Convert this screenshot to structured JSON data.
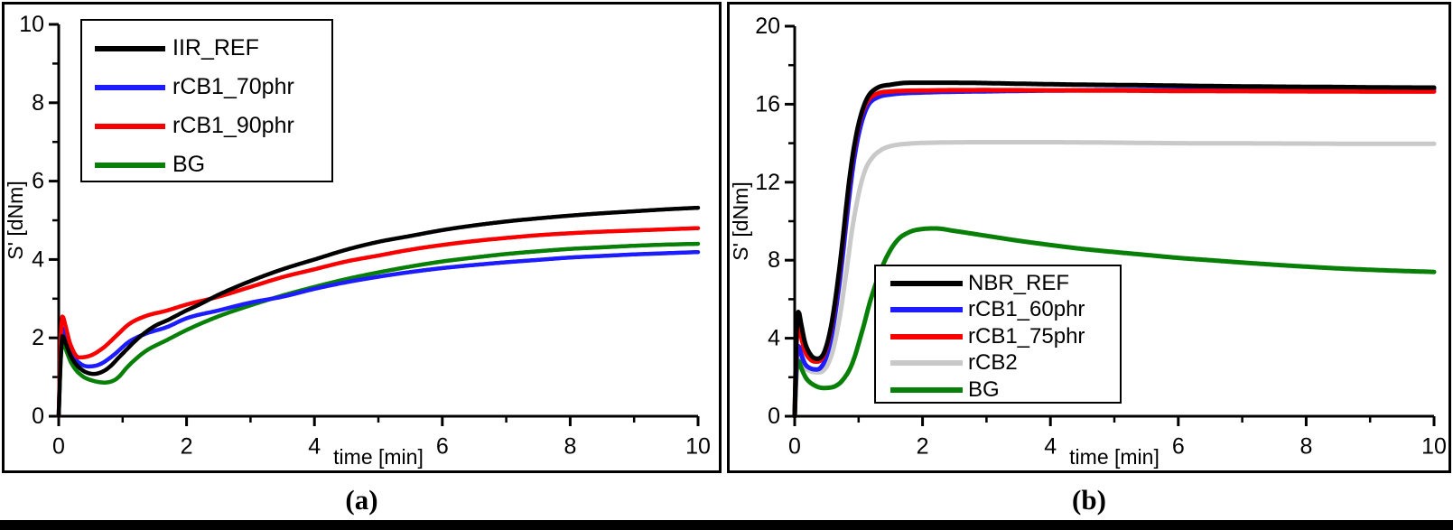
{
  "figure": {
    "captions": {
      "a": "(a)",
      "b": "(b)"
    }
  },
  "chart_data": [
    {
      "id": "a",
      "type": "line",
      "title": "",
      "xlabel": "time [min]",
      "ylabel": "S' [dNm]",
      "xlim": [
        0,
        10
      ],
      "ylim": [
        0,
        10
      ],
      "x_major_ticks": [
        0,
        2,
        4,
        6,
        8,
        10
      ],
      "x_minor_ticks": [
        1,
        3,
        5,
        7,
        9
      ],
      "y_major_ticks": [
        0,
        2,
        4,
        6,
        8,
        10
      ],
      "y_minor_ticks": [
        1,
        3,
        5,
        7,
        9
      ],
      "grid": false,
      "legend_position": "top-left",
      "line_width": 4.5,
      "series": [
        {
          "name": "IIR_REF",
          "color": "#000000",
          "z": 4,
          "points": [
            [
              0,
              0
            ],
            [
              0.03,
              1.4
            ],
            [
              0.06,
              2.05
            ],
            [
              0.1,
              1.9
            ],
            [
              0.2,
              1.5
            ],
            [
              0.35,
              1.2
            ],
            [
              0.55,
              1.08
            ],
            [
              0.75,
              1.2
            ],
            [
              1.0,
              1.6
            ],
            [
              1.25,
              2.0
            ],
            [
              1.5,
              2.3
            ],
            [
              1.7,
              2.45
            ],
            [
              2.0,
              2.7
            ],
            [
              2.2,
              2.85
            ],
            [
              2.5,
              3.1
            ],
            [
              3.0,
              3.45
            ],
            [
              3.5,
              3.75
            ],
            [
              4.0,
              4.0
            ],
            [
              4.5,
              4.25
            ],
            [
              5.0,
              4.45
            ],
            [
              5.5,
              4.6
            ],
            [
              6.0,
              4.75
            ],
            [
              6.5,
              4.87
            ],
            [
              7.0,
              4.97
            ],
            [
              7.5,
              5.05
            ],
            [
              8.0,
              5.12
            ],
            [
              8.5,
              5.18
            ],
            [
              9.0,
              5.23
            ],
            [
              9.5,
              5.28
            ],
            [
              10,
              5.32
            ]
          ]
        },
        {
          "name": "rCB1_70phr",
          "color": "#1c1cff",
          "z": 2,
          "points": [
            [
              0,
              0
            ],
            [
              0.03,
              1.65
            ],
            [
              0.06,
              2.25
            ],
            [
              0.1,
              2.05
            ],
            [
              0.2,
              1.6
            ],
            [
              0.33,
              1.35
            ],
            [
              0.47,
              1.27
            ],
            [
              0.65,
              1.33
            ],
            [
              0.85,
              1.55
            ],
            [
              1.1,
              1.9
            ],
            [
              1.35,
              2.1
            ],
            [
              1.7,
              2.28
            ],
            [
              2.0,
              2.5
            ],
            [
              2.5,
              2.7
            ],
            [
              3.0,
              2.9
            ],
            [
              3.5,
              3.05
            ],
            [
              4.0,
              3.25
            ],
            [
              4.5,
              3.42
            ],
            [
              5.0,
              3.56
            ],
            [
              5.5,
              3.68
            ],
            [
              6.0,
              3.78
            ],
            [
              6.5,
              3.86
            ],
            [
              7.0,
              3.93
            ],
            [
              7.5,
              3.99
            ],
            [
              8.0,
              4.05
            ],
            [
              8.5,
              4.09
            ],
            [
              9.0,
              4.13
            ],
            [
              9.5,
              4.16
            ],
            [
              10,
              4.19
            ]
          ]
        },
        {
          "name": "rCB1_90phr",
          "color": "#f80000",
          "z": 3,
          "points": [
            [
              0,
              0
            ],
            [
              0.03,
              1.9
            ],
            [
              0.06,
              2.55
            ],
            [
              0.1,
              2.35
            ],
            [
              0.18,
              1.85
            ],
            [
              0.32,
              1.5
            ],
            [
              0.5,
              1.55
            ],
            [
              0.7,
              1.75
            ],
            [
              0.9,
              2.05
            ],
            [
              1.1,
              2.35
            ],
            [
              1.35,
              2.55
            ],
            [
              1.7,
              2.7
            ],
            [
              2.0,
              2.85
            ],
            [
              2.5,
              3.05
            ],
            [
              3.0,
              3.3
            ],
            [
              3.5,
              3.55
            ],
            [
              4.0,
              3.75
            ],
            [
              4.5,
              3.95
            ],
            [
              5.0,
              4.1
            ],
            [
              5.5,
              4.25
            ],
            [
              6.0,
              4.37
            ],
            [
              6.5,
              4.47
            ],
            [
              7.0,
              4.55
            ],
            [
              7.5,
              4.62
            ],
            [
              8.0,
              4.67
            ],
            [
              8.5,
              4.71
            ],
            [
              9.0,
              4.74
            ],
            [
              9.5,
              4.77
            ],
            [
              10,
              4.8
            ]
          ]
        },
        {
          "name": "BG",
          "color": "#088008",
          "z": 1,
          "points": [
            [
              0,
              0
            ],
            [
              0.03,
              1.4
            ],
            [
              0.06,
              1.9
            ],
            [
              0.1,
              1.75
            ],
            [
              0.2,
              1.35
            ],
            [
              0.35,
              1.05
            ],
            [
              0.55,
              0.9
            ],
            [
              0.72,
              0.86
            ],
            [
              0.9,
              0.95
            ],
            [
              1.1,
              1.3
            ],
            [
              1.35,
              1.65
            ],
            [
              1.7,
              1.95
            ],
            [
              2.0,
              2.2
            ],
            [
              2.5,
              2.55
            ],
            [
              3.0,
              2.83
            ],
            [
              3.5,
              3.08
            ],
            [
              4.0,
              3.3
            ],
            [
              4.5,
              3.5
            ],
            [
              5.0,
              3.67
            ],
            [
              5.5,
              3.82
            ],
            [
              6.0,
              3.95
            ],
            [
              6.5,
              4.05
            ],
            [
              7.0,
              4.14
            ],
            [
              7.5,
              4.21
            ],
            [
              8.0,
              4.27
            ],
            [
              8.5,
              4.31
            ],
            [
              9.0,
              4.35
            ],
            [
              9.5,
              4.38
            ],
            [
              10,
              4.4
            ]
          ]
        }
      ]
    },
    {
      "id": "b",
      "type": "line",
      "title": "",
      "xlabel": "time [min]",
      "ylabel": "S' [dNm]",
      "xlim": [
        0,
        10
      ],
      "ylim": [
        0,
        20
      ],
      "x_major_ticks": [
        0,
        2,
        4,
        6,
        8,
        10
      ],
      "x_minor_ticks": [
        1,
        3,
        5,
        7,
        9
      ],
      "y_major_ticks": [
        0,
        4,
        8,
        12,
        16,
        20
      ],
      "y_minor_ticks": [
        2,
        6,
        10,
        14,
        18
      ],
      "grid": false,
      "legend_position": "inside-bottom-left",
      "line_width": 5,
      "series": [
        {
          "name": "NBR_REF",
          "color": "#000000",
          "z": 5,
          "points": [
            [
              0,
              0
            ],
            [
              0.03,
              4.4
            ],
            [
              0.06,
              5.35
            ],
            [
              0.1,
              4.75
            ],
            [
              0.16,
              3.8
            ],
            [
              0.25,
              3.15
            ],
            [
              0.35,
              2.95
            ],
            [
              0.45,
              3.2
            ],
            [
              0.55,
              4.3
            ],
            [
              0.65,
              6.3
            ],
            [
              0.75,
              9.0
            ],
            [
              0.85,
              12.0
            ],
            [
              0.95,
              14.2
            ],
            [
              1.05,
              15.6
            ],
            [
              1.15,
              16.4
            ],
            [
              1.3,
              16.85
            ],
            [
              1.5,
              17.0
            ],
            [
              1.8,
              17.1
            ],
            [
              2.5,
              17.1
            ],
            [
              3.5,
              17.05
            ],
            [
              4.5,
              17.0
            ],
            [
              5.5,
              16.97
            ],
            [
              6.5,
              16.93
            ],
            [
              7.5,
              16.9
            ],
            [
              8.5,
              16.88
            ],
            [
              9.25,
              16.86
            ],
            [
              10,
              16.85
            ]
          ]
        },
        {
          "name": "rCB1_60phr",
          "color": "#1c1cff",
          "z": 3,
          "points": [
            [
              0,
              0
            ],
            [
              0.03,
              2.95
            ],
            [
              0.06,
              3.6
            ],
            [
              0.1,
              3.2
            ],
            [
              0.16,
              2.7
            ],
            [
              0.25,
              2.45
            ],
            [
              0.35,
              2.4
            ],
            [
              0.45,
              2.7
            ],
            [
              0.55,
              3.7
            ],
            [
              0.65,
              5.6
            ],
            [
              0.75,
              8.2
            ],
            [
              0.85,
              11.2
            ],
            [
              0.95,
              13.6
            ],
            [
              1.05,
              15.1
            ],
            [
              1.15,
              15.95
            ],
            [
              1.3,
              16.35
            ],
            [
              1.5,
              16.5
            ],
            [
              2.0,
              16.6
            ],
            [
              3.0,
              16.66
            ],
            [
              4.0,
              16.7
            ],
            [
              5.0,
              16.72
            ],
            [
              6.0,
              16.73
            ],
            [
              7.0,
              16.74
            ],
            [
              8.0,
              16.75
            ],
            [
              9.0,
              16.76
            ],
            [
              10,
              16.77
            ]
          ]
        },
        {
          "name": "rCB1_75phr",
          "color": "#f80000",
          "z": 4,
          "points": [
            [
              0,
              0
            ],
            [
              0.03,
              3.85
            ],
            [
              0.06,
              4.65
            ],
            [
              0.1,
              4.1
            ],
            [
              0.16,
              3.35
            ],
            [
              0.25,
              2.9
            ],
            [
              0.35,
              2.8
            ],
            [
              0.45,
              3.1
            ],
            [
              0.55,
              4.2
            ],
            [
              0.65,
              6.2
            ],
            [
              0.75,
              8.9
            ],
            [
              0.85,
              11.9
            ],
            [
              0.95,
              14.1
            ],
            [
              1.05,
              15.5
            ],
            [
              1.15,
              16.2
            ],
            [
              1.3,
              16.55
            ],
            [
              1.5,
              16.65
            ],
            [
              2.0,
              16.7
            ],
            [
              3.0,
              16.72
            ],
            [
              4.0,
              16.71
            ],
            [
              5.0,
              16.7
            ],
            [
              6.0,
              16.68
            ],
            [
              7.0,
              16.67
            ],
            [
              8.0,
              16.66
            ],
            [
              9.0,
              16.65
            ],
            [
              10,
              16.65
            ]
          ]
        },
        {
          "name": "rCB2",
          "color": "#c9c9c9",
          "z": 1,
          "points": [
            [
              0,
              0
            ],
            [
              0.03,
              2.65
            ],
            [
              0.06,
              3.2
            ],
            [
              0.1,
              2.85
            ],
            [
              0.16,
              2.5
            ],
            [
              0.25,
              2.3
            ],
            [
              0.38,
              2.25
            ],
            [
              0.5,
              2.55
            ],
            [
              0.6,
              3.4
            ],
            [
              0.7,
              5.0
            ],
            [
              0.8,
              7.2
            ],
            [
              0.9,
              9.6
            ],
            [
              1.0,
              11.4
            ],
            [
              1.1,
              12.6
            ],
            [
              1.2,
              13.2
            ],
            [
              1.35,
              13.65
            ],
            [
              1.5,
              13.85
            ],
            [
              1.8,
              13.98
            ],
            [
              2.2,
              14.03
            ],
            [
              3.0,
              14.05
            ],
            [
              4.0,
              14.05
            ],
            [
              5.0,
              14.03
            ],
            [
              6.0,
              14.0
            ],
            [
              7.0,
              13.99
            ],
            [
              8.0,
              13.98
            ],
            [
              9.0,
              13.97
            ],
            [
              10,
              13.97
            ]
          ]
        },
        {
          "name": "BG",
          "color": "#088008",
          "z": 2,
          "points": [
            [
              0,
              0
            ],
            [
              0.03,
              2.35
            ],
            [
              0.06,
              2.85
            ],
            [
              0.1,
              2.5
            ],
            [
              0.18,
              1.95
            ],
            [
              0.3,
              1.6
            ],
            [
              0.45,
              1.45
            ],
            [
              0.6,
              1.5
            ],
            [
              0.75,
              1.85
            ],
            [
              0.9,
              2.7
            ],
            [
              1.05,
              4.3
            ],
            [
              1.2,
              6.1
            ],
            [
              1.4,
              7.9
            ],
            [
              1.6,
              9.0
            ],
            [
              1.8,
              9.45
            ],
            [
              2.0,
              9.6
            ],
            [
              2.2,
              9.63
            ],
            [
              2.5,
              9.5
            ],
            [
              3.0,
              9.25
            ],
            [
              3.5,
              9.0
            ],
            [
              4.0,
              8.78
            ],
            [
              4.5,
              8.58
            ],
            [
              5.0,
              8.42
            ],
            [
              5.5,
              8.27
            ],
            [
              6.0,
              8.12
            ],
            [
              6.5,
              8.0
            ],
            [
              7.0,
              7.88
            ],
            [
              7.5,
              7.77
            ],
            [
              8.0,
              7.67
            ],
            [
              8.5,
              7.58
            ],
            [
              9.0,
              7.51
            ],
            [
              9.5,
              7.45
            ],
            [
              10,
              7.4
            ]
          ]
        }
      ]
    }
  ]
}
